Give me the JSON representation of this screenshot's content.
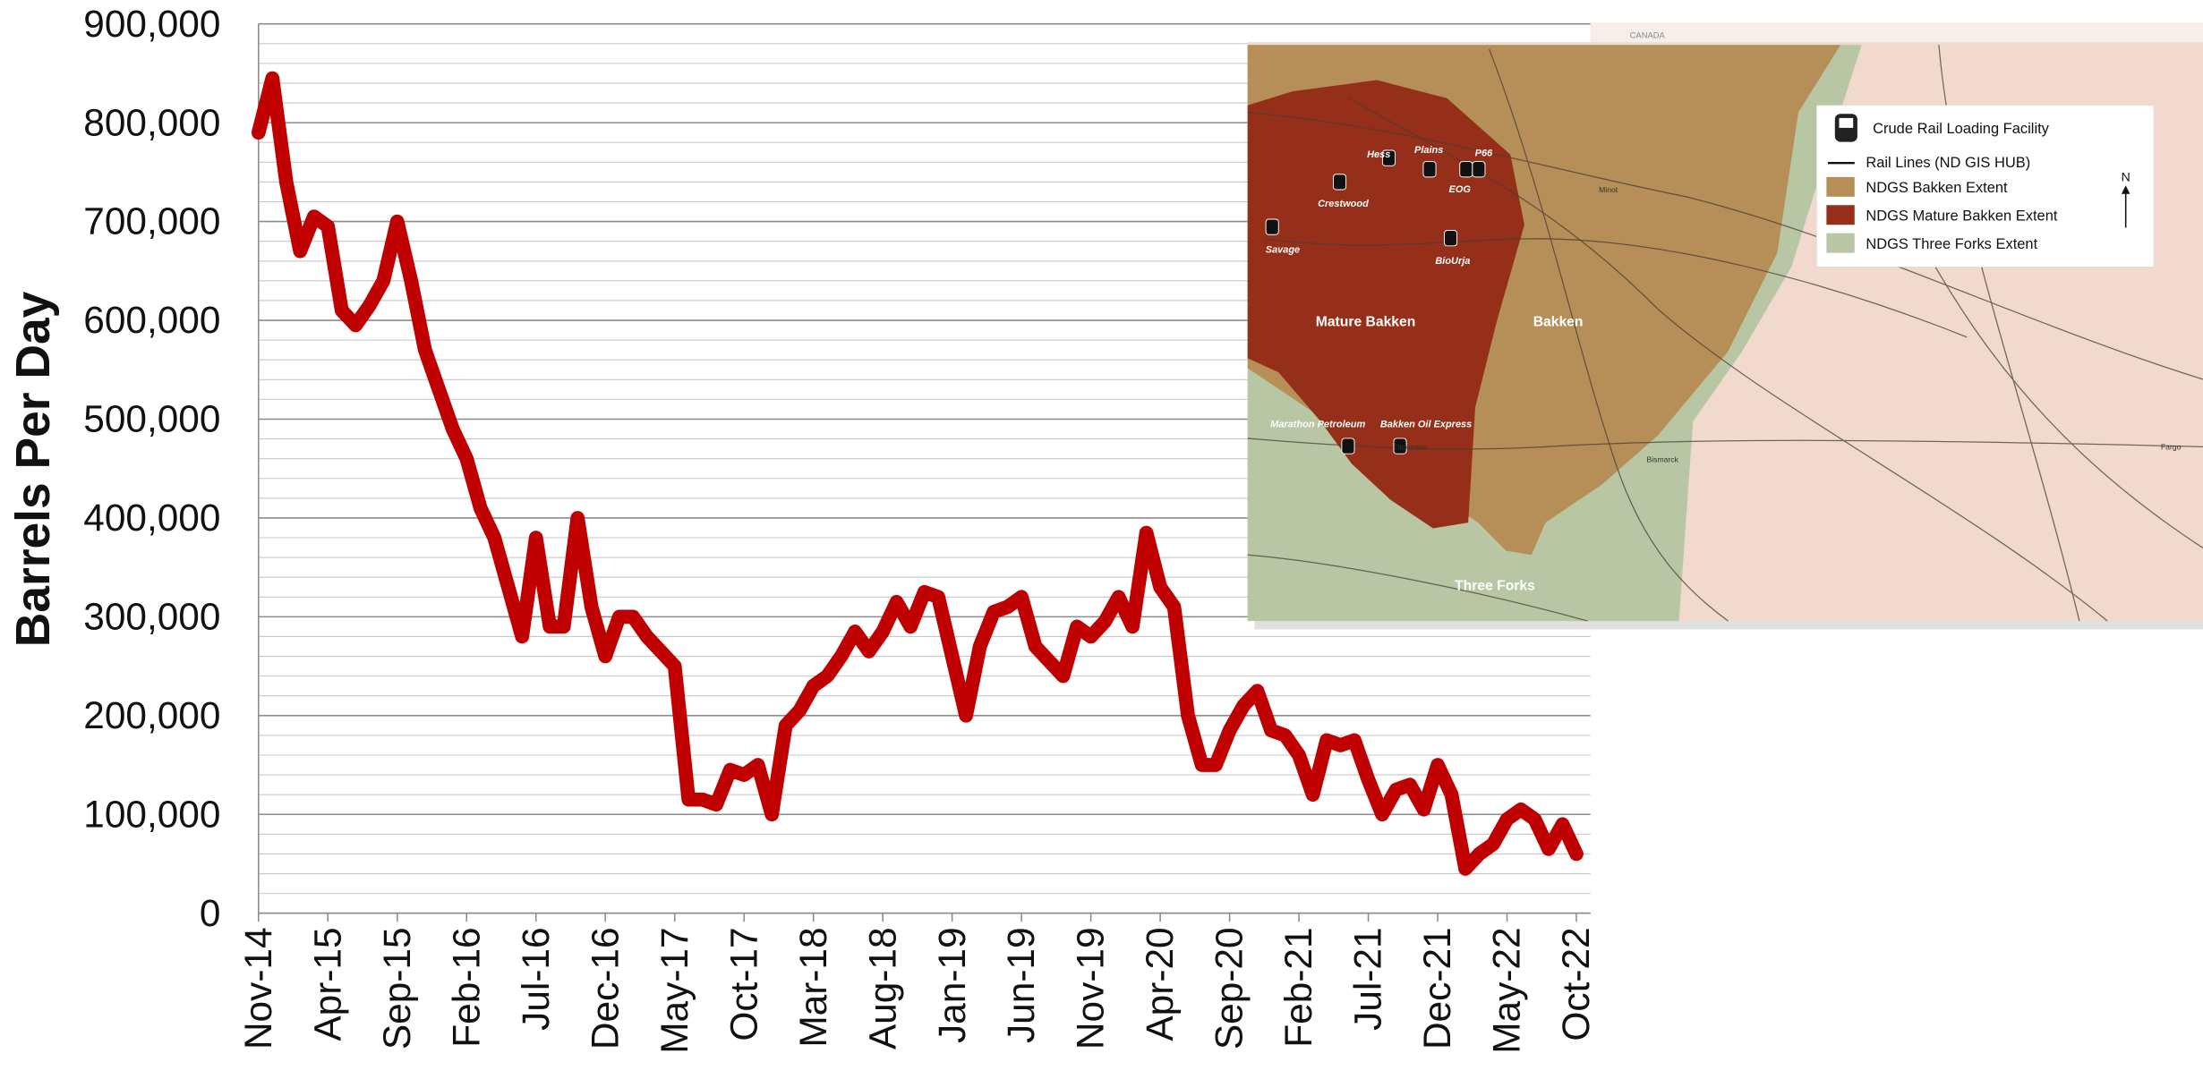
{
  "chart_data": {
    "type": "line",
    "y_label": "Barrels Per Day",
    "categories": [
      "Nov-14",
      null,
      null,
      null,
      null,
      "Apr-15",
      null,
      null,
      null,
      null,
      "Sep-15",
      null,
      null,
      null,
      null,
      "Feb-16",
      null,
      null,
      null,
      null,
      "Jul-16",
      null,
      null,
      null,
      null,
      "Dec-16",
      null,
      null,
      null,
      null,
      "May-17",
      null,
      null,
      null,
      null,
      "Oct-17",
      null,
      null,
      null,
      null,
      "Mar-18",
      null,
      null,
      null,
      null,
      "Aug-18",
      null,
      null,
      null,
      null,
      "Jan-19",
      null,
      null,
      null,
      null,
      "Jun-19",
      null,
      null,
      null,
      null,
      "Nov-19",
      null,
      null,
      null,
      null,
      "Apr-20",
      null,
      null,
      null,
      null,
      "Sep-20",
      null,
      null,
      null,
      null,
      "Feb-21",
      null,
      null,
      null,
      null,
      "Jul-21",
      null,
      null,
      null,
      null,
      "Dec-21",
      null,
      null,
      null,
      null,
      "May-22",
      null,
      null,
      null,
      null,
      "Oct-22"
    ],
    "values": [
      790000,
      845000,
      740000,
      670000,
      705000,
      695000,
      610000,
      595000,
      615000,
      640000,
      700000,
      640000,
      570000,
      530000,
      490000,
      460000,
      410000,
      380000,
      330000,
      280000,
      380000,
      290000,
      290000,
      400000,
      310000,
      260000,
      300000,
      300000,
      280000,
      265000,
      250000,
      115000,
      115000,
      110000,
      145000,
      140000,
      150000,
      100000,
      190000,
      205000,
      230000,
      240000,
      260000,
      285000,
      265000,
      285000,
      315000,
      290000,
      325000,
      320000,
      260000,
      200000,
      270000,
      305000,
      310000,
      320000,
      270000,
      255000,
      240000,
      290000,
      280000,
      295000,
      320000,
      290000,
      385000,
      330000,
      310000,
      200000,
      150000,
      150000,
      185000,
      210000,
      225000,
      185000,
      180000,
      160000,
      120000,
      175000,
      170000,
      175000,
      135000,
      100000,
      125000,
      130000,
      105000,
      150000,
      120000,
      45000,
      60000,
      70000,
      95000,
      105000,
      95000,
      65000,
      90000,
      60000
    ],
    "color": "#c00000",
    "ylim": [
      0,
      900000
    ],
    "yticks": [
      0,
      {
        "value": 100000,
        "label": "100,000"
      },
      {
        "value": 200000,
        "label": "200,000"
      },
      {
        "value": 300000,
        "label": "300,000"
      },
      {
        "value": 400000,
        "label": "400,000"
      },
      {
        "value": 500000,
        "label": "500,000"
      },
      {
        "value": 600000,
        "label": "600,000"
      },
      {
        "value": 700000,
        "label": "700,000"
      },
      {
        "value": 800000,
        "label": "800,000"
      },
      {
        "value": 900000,
        "label": "900,000"
      }
    ],
    "minor_yticks": [
      20000,
      40000,
      60000,
      80000,
      120000,
      140000,
      160000,
      180000,
      220000,
      240000,
      260000,
      280000,
      320000,
      340000,
      360000,
      380000,
      420000,
      440000,
      460000,
      480000,
      520000,
      540000,
      560000,
      580000,
      620000,
      640000,
      660000,
      680000,
      720000,
      740000,
      760000,
      780000,
      820000,
      840000,
      860000,
      880000
    ],
    "grid": true
  },
  "map": {
    "country": "CANADA",
    "legend": [
      "Crude Rail Loading Facility",
      "Rail Lines (ND GIS HUB)",
      "NDGS Bakken Extent",
      "NDGS  Mature Bakken Extent",
      "NDGS Three Forks Extent"
    ],
    "north": "N",
    "regions": [
      "Mature Bakken",
      "Bakken",
      "Three Forks"
    ],
    "facilities": [
      "Hess",
      "Plains",
      "P66",
      "EOG",
      "Crestwood",
      "Savage",
      "BioUrja",
      "Marathon Petroleum",
      "Bakken Oil Express"
    ],
    "cities": [
      "Minot",
      "Dickinson",
      "Bismarck",
      "Fargo"
    ]
  }
}
